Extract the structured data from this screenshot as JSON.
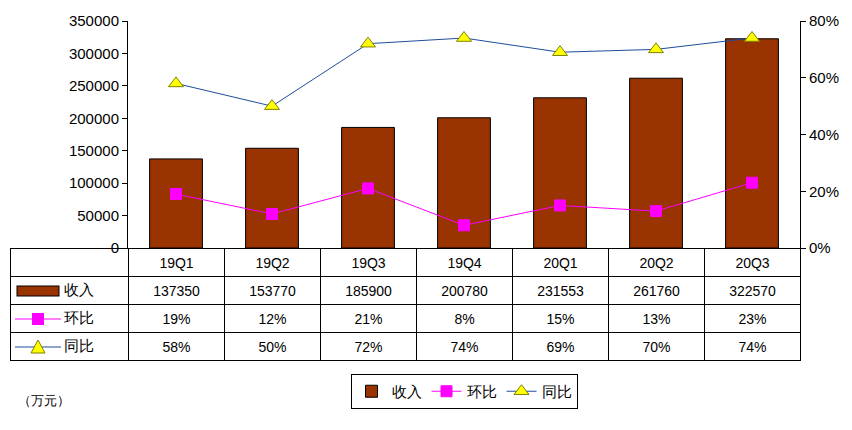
{
  "chart_data": {
    "type": "bar",
    "categories": [
      "19Q1",
      "19Q2",
      "19Q3",
      "19Q4",
      "20Q1",
      "20Q2",
      "20Q3"
    ],
    "series": [
      {
        "name": "收入",
        "type": "bar",
        "color": "#993300",
        "values": [
          137350,
          153770,
          185900,
          200780,
          231553,
          261760,
          322570
        ]
      },
      {
        "name": "环比",
        "type": "line",
        "axis": "y2",
        "color": "#ff00ff",
        "marker": "square",
        "values": [
          19,
          12,
          21,
          8,
          15,
          13,
          23
        ],
        "value_labels": [
          "19%",
          "12%",
          "21%",
          "8%",
          "15%",
          "13%",
          "23%"
        ]
      },
      {
        "name": "同比",
        "type": "line",
        "axis": "y2",
        "color": "#1f4e9c",
        "marker": "triangle-up",
        "values": [
          58,
          50,
          72,
          74,
          69,
          70,
          74
        ],
        "value_labels": [
          "58%",
          "50%",
          "72%",
          "74%",
          "69%",
          "70%",
          "74%"
        ]
      }
    ],
    "ylabel": "（万元）",
    "ylim": [
      0,
      350000
    ],
    "yticks": [
      0,
      50000,
      100000,
      150000,
      200000,
      250000,
      300000,
      350000
    ],
    "y2lim": [
      0,
      80
    ],
    "y2ticks": [
      {
        "value": 0,
        "label": "0%"
      },
      {
        "value": 20,
        "label": "20%"
      },
      {
        "value": 40,
        "label": "40%"
      },
      {
        "value": 60,
        "label": "60%"
      },
      {
        "value": 80,
        "label": "80%"
      }
    ],
    "grid": false,
    "legend": "bottom",
    "data_labels": true
  }
}
